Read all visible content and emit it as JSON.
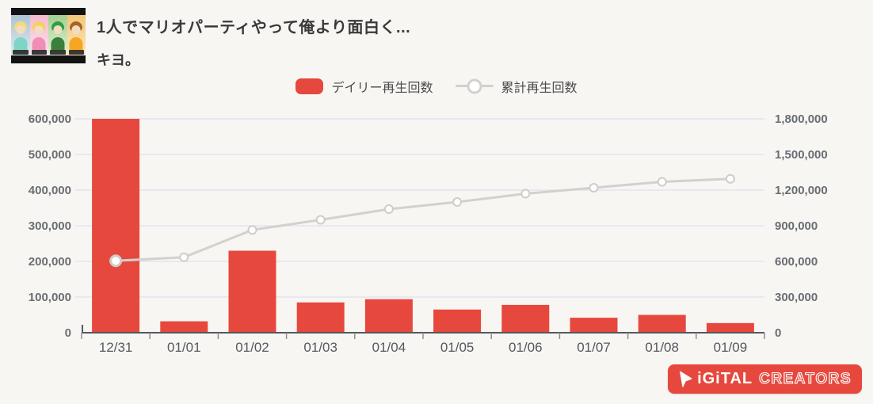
{
  "header": {
    "video_title": "1人でマリオパーティやって俺より面白く...",
    "channel_name": "キヨ。"
  },
  "legend": {
    "daily_label": "デイリー再生回数",
    "cumulative_label": "累計再生回数"
  },
  "chart_data": {
    "type": "bar+line",
    "title": "",
    "categories": [
      "12/31",
      "01/01",
      "01/02",
      "01/03",
      "01/04",
      "01/05",
      "01/06",
      "01/07",
      "01/08",
      "01/09"
    ],
    "series": [
      {
        "name": "デイリー再生回数",
        "type": "bar",
        "axis": "left",
        "color": "#e6483d",
        "values": [
          600000,
          32000,
          230000,
          85000,
          94000,
          65000,
          78000,
          42000,
          50000,
          27000
        ]
      },
      {
        "name": "累計再生回数",
        "type": "line",
        "axis": "right",
        "color": "#d3d0cd",
        "marker": "white-circle",
        "values": [
          605000,
          635000,
          865000,
          950000,
          1040000,
          1100000,
          1170000,
          1220000,
          1270000,
          1295000
        ]
      }
    ],
    "left_axis": {
      "min": 0,
      "max": 600000,
      "step": 100000,
      "tick_labels": [
        "0",
        "100,000",
        "200,000",
        "300,000",
        "400,000",
        "500,000",
        "600,000"
      ]
    },
    "right_axis": {
      "min": 0,
      "max": 1800000,
      "step": 300000,
      "tick_labels": [
        "0",
        "300,000",
        "600,000",
        "900,000",
        "1,200,000",
        "1,500,000",
        "1,800,000"
      ]
    },
    "grid": true,
    "legend_position": "top"
  },
  "logo": {
    "icon": "play-cursor-icon",
    "digital": "iGiTAL",
    "creators": "CREATORS"
  },
  "style": {
    "background": "#f8f6f3",
    "grid_color": "#e4e3ee",
    "axis_color": "#54585c",
    "tick_color": "#8d9196",
    "y_label_color": "#696d73",
    "x_label_color": "#55595e",
    "marker_stroke": "#cfccc9",
    "brand_red": "#e6483d"
  }
}
